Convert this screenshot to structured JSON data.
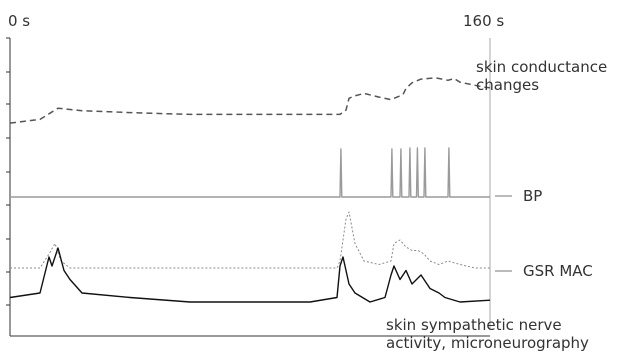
{
  "chart_data": {
    "type": "line",
    "x_unit": "s",
    "xlim": [
      0,
      160
    ],
    "x_ticks": [
      "0 s",
      "160 s"
    ],
    "grid": false,
    "legend": "labels at right end of traces",
    "series": [
      {
        "name": "skin conductance changes",
        "style": "dashed",
        "color": "#555555",
        "x": [
          0,
          10,
          16,
          24,
          40,
          60,
          80,
          100,
          110,
          112,
          113,
          115,
          118,
          123,
          127,
          131,
          132,
          134,
          137,
          142,
          146,
          148,
          150,
          155,
          158,
          160
        ],
        "values": [
          0.24,
          0.3,
          0.48,
          0.44,
          0.41,
          0.38,
          0.38,
          0.38,
          0.38,
          0.45,
          0.64,
          0.68,
          0.72,
          0.66,
          0.62,
          0.7,
          0.8,
          0.89,
          0.95,
          0.97,
          0.93,
          0.96,
          0.9,
          0.85,
          0.82,
          0.81
        ]
      },
      {
        "name": "BP",
        "style": "solid",
        "color": "#9a9a9a",
        "x": [
          0,
          110,
          110.3,
          110.6,
          111,
          127,
          127.3,
          127.6,
          130,
          130.3,
          130.6,
          133,
          133.3,
          133.6,
          135.5,
          135.8,
          136.1,
          138,
          138.3,
          138.6,
          146,
          146.3,
          146.6,
          160
        ],
        "values": [
          0.0,
          0.0,
          0.98,
          0.0,
          0.0,
          0.0,
          0.98,
          0.0,
          0.0,
          0.98,
          0.0,
          0.0,
          1.0,
          0.0,
          0.0,
          1.0,
          0.0,
          0.0,
          1.0,
          0.0,
          0.0,
          1.0,
          0.0,
          0.0
        ]
      },
      {
        "name": "GSR MAC",
        "style": "dotted",
        "color": "#8a8a8a",
        "x": [
          0,
          10,
          13,
          15,
          17,
          20,
          40,
          60,
          80,
          100,
          109,
          110,
          112,
          113,
          115,
          118,
          123,
          127,
          128,
          130,
          132,
          134,
          136,
          138,
          140,
          143,
          146,
          150,
          155,
          160
        ],
        "values": [
          0.2,
          0.2,
          0.4,
          0.55,
          0.3,
          0.2,
          0.2,
          0.2,
          0.2,
          0.2,
          0.2,
          0.3,
          0.9,
          1.0,
          0.55,
          0.3,
          0.25,
          0.3,
          0.55,
          0.6,
          0.5,
          0.45,
          0.45,
          0.4,
          0.3,
          0.25,
          0.3,
          0.25,
          0.2,
          0.2
        ]
      },
      {
        "name": "skin sympathetic nerve activity, microneurography",
        "style": "solid",
        "color": "#111111",
        "x": [
          0,
          10,
          13,
          14,
          16,
          18,
          20,
          24,
          40,
          60,
          80,
          100,
          109,
          110,
          111,
          113,
          115,
          120,
          125,
          127,
          128,
          130,
          132,
          134,
          137,
          140,
          143,
          145,
          150,
          160
        ],
        "values": [
          0.25,
          0.3,
          0.7,
          0.6,
          0.8,
          0.55,
          0.45,
          0.3,
          0.25,
          0.2,
          0.2,
          0.2,
          0.25,
          0.6,
          0.7,
          0.4,
          0.3,
          0.2,
          0.25,
          0.5,
          0.6,
          0.45,
          0.55,
          0.4,
          0.5,
          0.35,
          0.3,
          0.25,
          0.2,
          0.22
        ]
      }
    ]
  },
  "labels": {
    "x_start": "0 s",
    "x_end": "160 s",
    "skin_conductance": "skin conductance\nchanges",
    "bp": "BP",
    "gsr_mac": "GSR MAC",
    "nerve": "skin sympathetic nerve\nactivity, microneurography"
  }
}
